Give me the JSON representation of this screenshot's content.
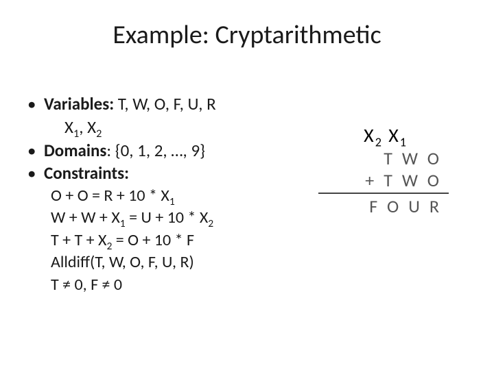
{
  "title": "Example: Cryptarithmetic",
  "bullets": {
    "variables_label": "Variables:",
    "variables_text": " T, W, O, F, U, R",
    "variables_sub_pre": "X",
    "variables_sub_s1": "1",
    "variables_sub_mid": ", X",
    "variables_sub_s2": "2",
    "domains_label": "Domains",
    "domains_text": ": {0, 1, 2, …, 9}",
    "constraints_label": "Constraints:",
    "c1_a": "O + O = R + 10 * X",
    "c1_s": "1",
    "c2_a": "W + W + X",
    "c2_s1": "1",
    "c2_b": " = U + 10 * X",
    "c2_s2": "2",
    "c3_a": "T + T + X",
    "c3_s": "2",
    "c3_b": " = O + 10 * F",
    "c4": "Alldiff(T, W, O, F, U, R)",
    "c5": "T ≠ 0, F ≠ 0"
  },
  "arith": {
    "carry_a": "X",
    "carry_s2": "2",
    "carry_mid": " X",
    "carry_s1": "1",
    "row1": "TWO",
    "plus": "+",
    "row2": "TWO",
    "result": "FOUR"
  },
  "style": {
    "background": "#ffffff",
    "title_fontsize": 38,
    "body_fontsize": 25,
    "arith_fontsize": 26,
    "text_color": "#1a1a1a",
    "arith_letter_color": "#555555",
    "rule_color": "#444444"
  }
}
